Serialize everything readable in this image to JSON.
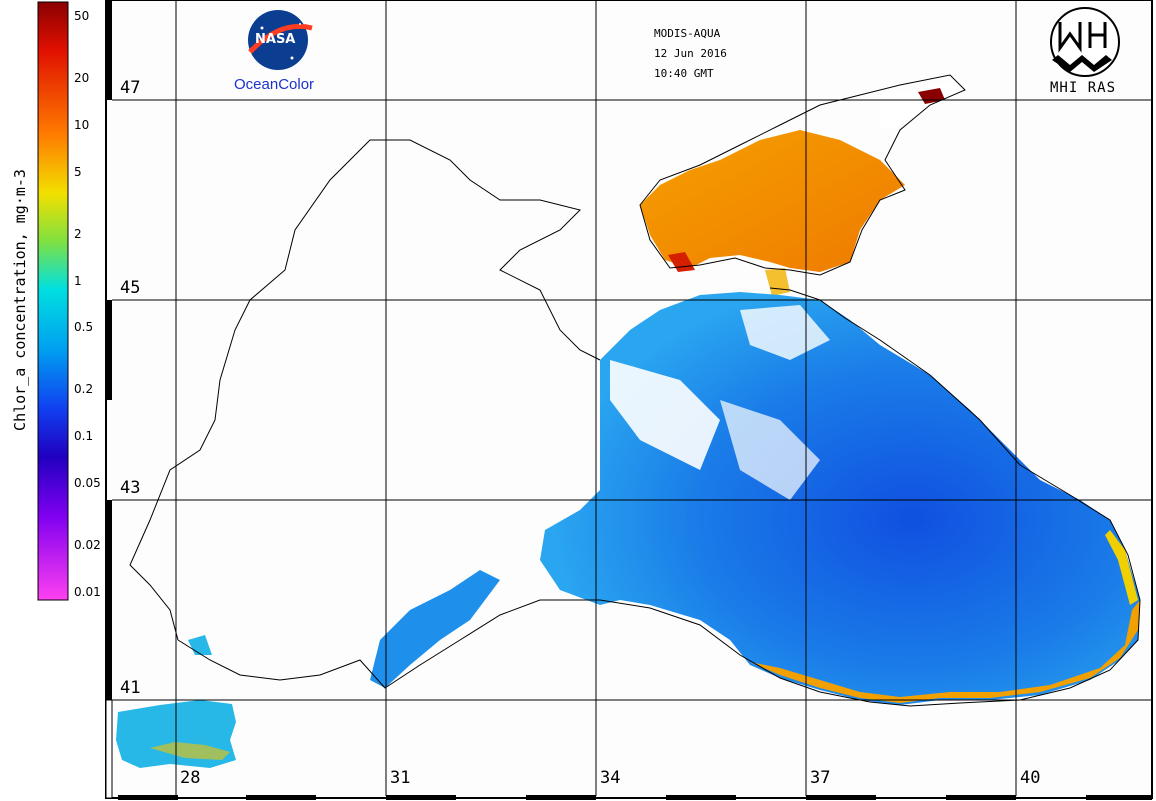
{
  "header": {
    "sensor": "MODIS-AQUA",
    "date": "12 Jun 2016",
    "time": "10:40 GMT"
  },
  "logos": {
    "nasa_text": "NASA",
    "oceancolor_text": "OceanColor",
    "mhi_text": "MHI RAS"
  },
  "colorbar": {
    "title": "Chlor_a concentration, mg·m-3",
    "ticks": [
      "50",
      "20",
      "10",
      "5",
      "2",
      "1",
      "0.5",
      "0.2",
      "0.1",
      "0.05",
      "0.02",
      "0.01"
    ],
    "scale": "log",
    "range": [
      0.01,
      50
    ]
  },
  "map": {
    "region": "Black Sea",
    "latitudes": [
      "47",
      "45",
      "43",
      "41"
    ],
    "longitudes": [
      "28",
      "31",
      "34",
      "37",
      "40"
    ],
    "colors": {
      "land": "#ffffff",
      "coastline": "#000000",
      "gridline": "#000000",
      "low_chl": "#1565e0",
      "mid_chl": "#1e9ef0",
      "high_chl": "#f2a000",
      "very_high_chl": "#d42a00"
    }
  }
}
